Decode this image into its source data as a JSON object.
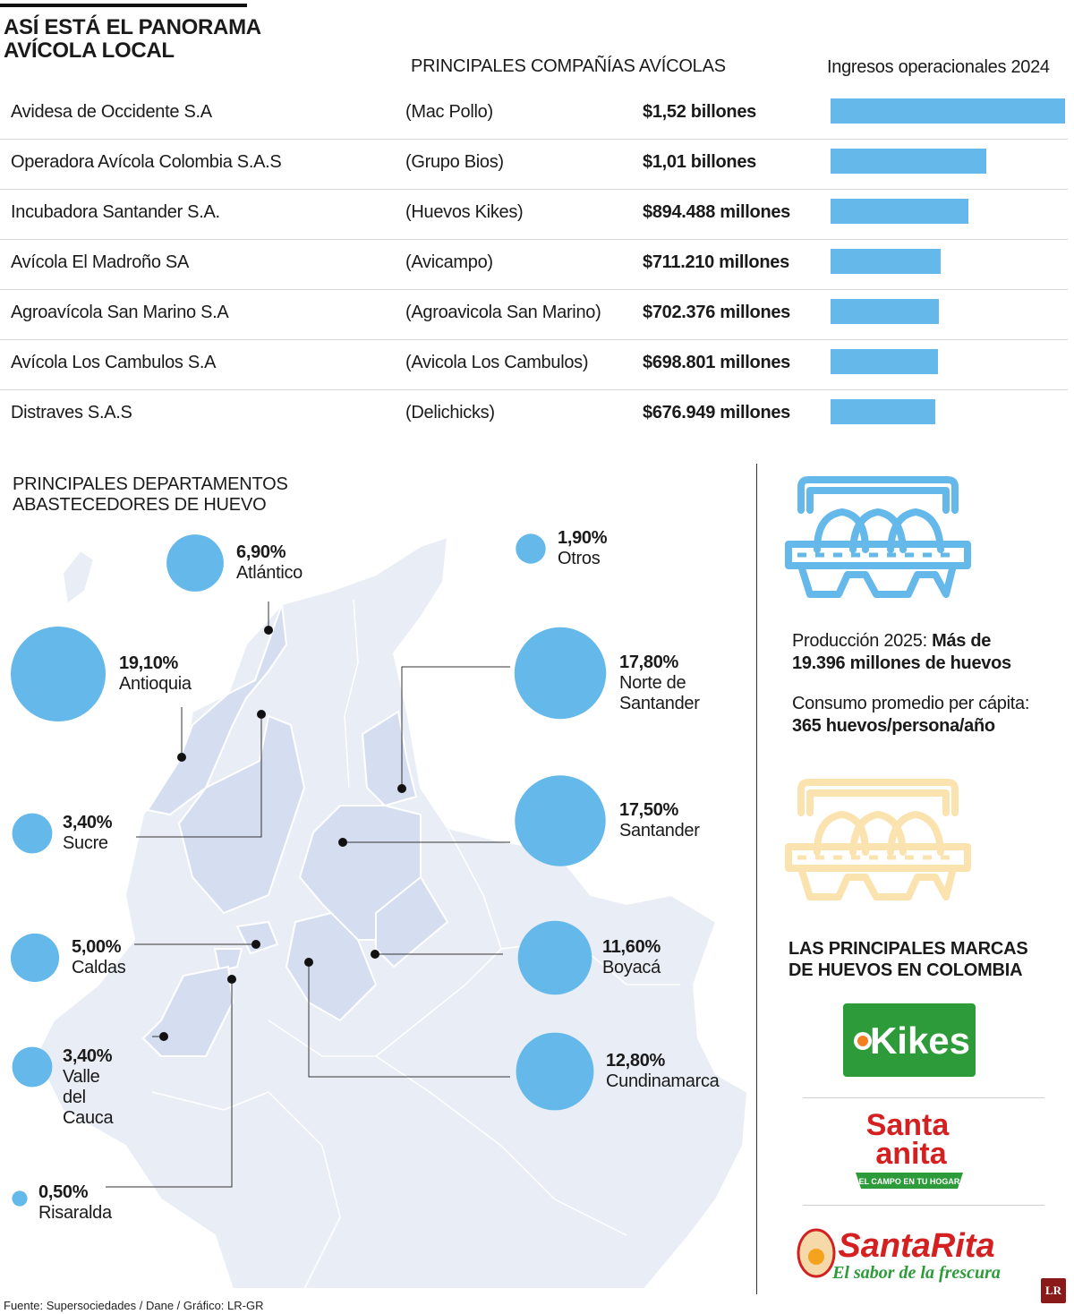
{
  "title": {
    "line1": "ASÍ ESTÁ EL PANORAMA",
    "line2": "AVÍCOLA LOCAL"
  },
  "companies_header": "PRINCIPALES COMPAÑÍAS AVÍCOLAS",
  "revenue_header": "Ingresos operacionales 2024",
  "companies": [
    {
      "name": "Avidesa de Occidente S.A",
      "brand": "(Mac Pollo)",
      "value_text": "$1,52 billones"
    },
    {
      "name": "Operadora Avícola Colombia S.A.S",
      "brand": "(Grupo Bios)",
      "value_text": "$1,01 billones"
    },
    {
      "name": "Incubadora Santander S.A.",
      "brand": "(Huevos Kikes)",
      "value_text": "$894.488 millones"
    },
    {
      "name": "Avícola El Madroño SA",
      "brand": "(Avicampo)",
      "value_text": "$711.210 millones"
    },
    {
      "name": "Agroavícola San Marino S.A",
      "brand": "(Agroavicola San Marino)",
      "value_text": "$702.376 millones"
    },
    {
      "name": "Avícola Los Cambulos S.A",
      "brand": "(Avicola Los Cambulos)",
      "value_text": "$698.801 millones"
    },
    {
      "name": "Distraves S.A.S",
      "brand": "(Delichicks)",
      "value_text": "$676.949 millones"
    }
  ],
  "departments_title": {
    "line1": "PRINCIPALES DEPARTAMENTOS",
    "line2": "ABASTECEDORES DE HUEVO"
  },
  "chart_data": [
    {
      "type": "bar",
      "orientation": "horizontal",
      "categories": [
        "Avidesa de Occidente S.A",
        "Operadora Avícola Colombia S.A.S",
        "Incubadora Santander S.A.",
        "Avícola El Madroño SA",
        "Agroavícola San Marino S.A",
        "Avícola Los Cambulos S.A",
        "Distraves S.A.S"
      ],
      "values": [
        1520000,
        1010000,
        894488,
        711210,
        702376,
        698801,
        676949
      ],
      "unit": "millones",
      "title": "PRINCIPALES COMPAÑÍAS AVÍCOLAS",
      "ylabel": "Ingresos operacionales 2024"
    },
    {
      "type": "bubble-map",
      "title": "PRINCIPALES DEPARTAMENTOS ABASTECEDORES DE HUEVO",
      "categories": [
        "Atlántico",
        "Otros",
        "Antioquia",
        "Norte de Santander",
        "Sucre",
        "Santander",
        "Caldas",
        "Boyacá",
        "Valle del Cauca",
        "Cundinamarca",
        "Risaralda"
      ],
      "values": [
        6.9,
        1.9,
        19.1,
        17.8,
        3.4,
        17.5,
        5.0,
        11.6,
        3.4,
        12.8,
        0.5
      ],
      "labels": [
        "6,90%",
        "1,90%",
        "19,10%",
        "17,80%",
        "3,40%",
        "17,50%",
        "5,00%",
        "11,60%",
        "3,40%",
        "12,80%",
        "0,50%"
      ],
      "name_lines": [
        [
          "Atlántico"
        ],
        [
          "Otros"
        ],
        [
          "Antioquia"
        ],
        [
          "Norte de",
          "Santander"
        ],
        [
          "Sucre"
        ],
        [
          "Santander"
        ],
        [
          "Caldas"
        ],
        [
          "Boyacá"
        ],
        [
          "Valle del Cauca"
        ],
        [
          "Cundinamarca"
        ],
        [
          "Risaralda"
        ]
      ],
      "unit": "%",
      "color": "#65b8ea"
    }
  ],
  "production": {
    "label": "Producción 2025: ",
    "value_line1": "Más de",
    "value_line2": "19.396 millones de huevos"
  },
  "consumption": {
    "label": "Consumo promedio per cápita:",
    "value": "365 huevos/persona/año"
  },
  "brands_title": {
    "line1": "LAS PRINCIPALES MARCAS",
    "line2": "DE HUEVOS EN COLOMBIA"
  },
  "brands": {
    "kikes": "Kikes",
    "santa_anita_1": "Santa",
    "santa_anita_2": "anita",
    "santa_anita_tagline": "EL CAMPO EN TU HOGAR",
    "santa_rita": "SantaRita",
    "santa_rita_tagline": "El sabor de la frescura"
  },
  "source": "Fuente: Supersociedades / Dane / Gráfico: LR-GR",
  "badge": "LR",
  "colors": {
    "bar": "#65b8ea",
    "map_land": "#e9edf6",
    "map_highlight": "#d5def0",
    "egg_blue": "#65b8ea",
    "egg_yellow": "#fbe3b0",
    "kikes_green": "#2e9b3a",
    "brand_red": "#d42020"
  }
}
